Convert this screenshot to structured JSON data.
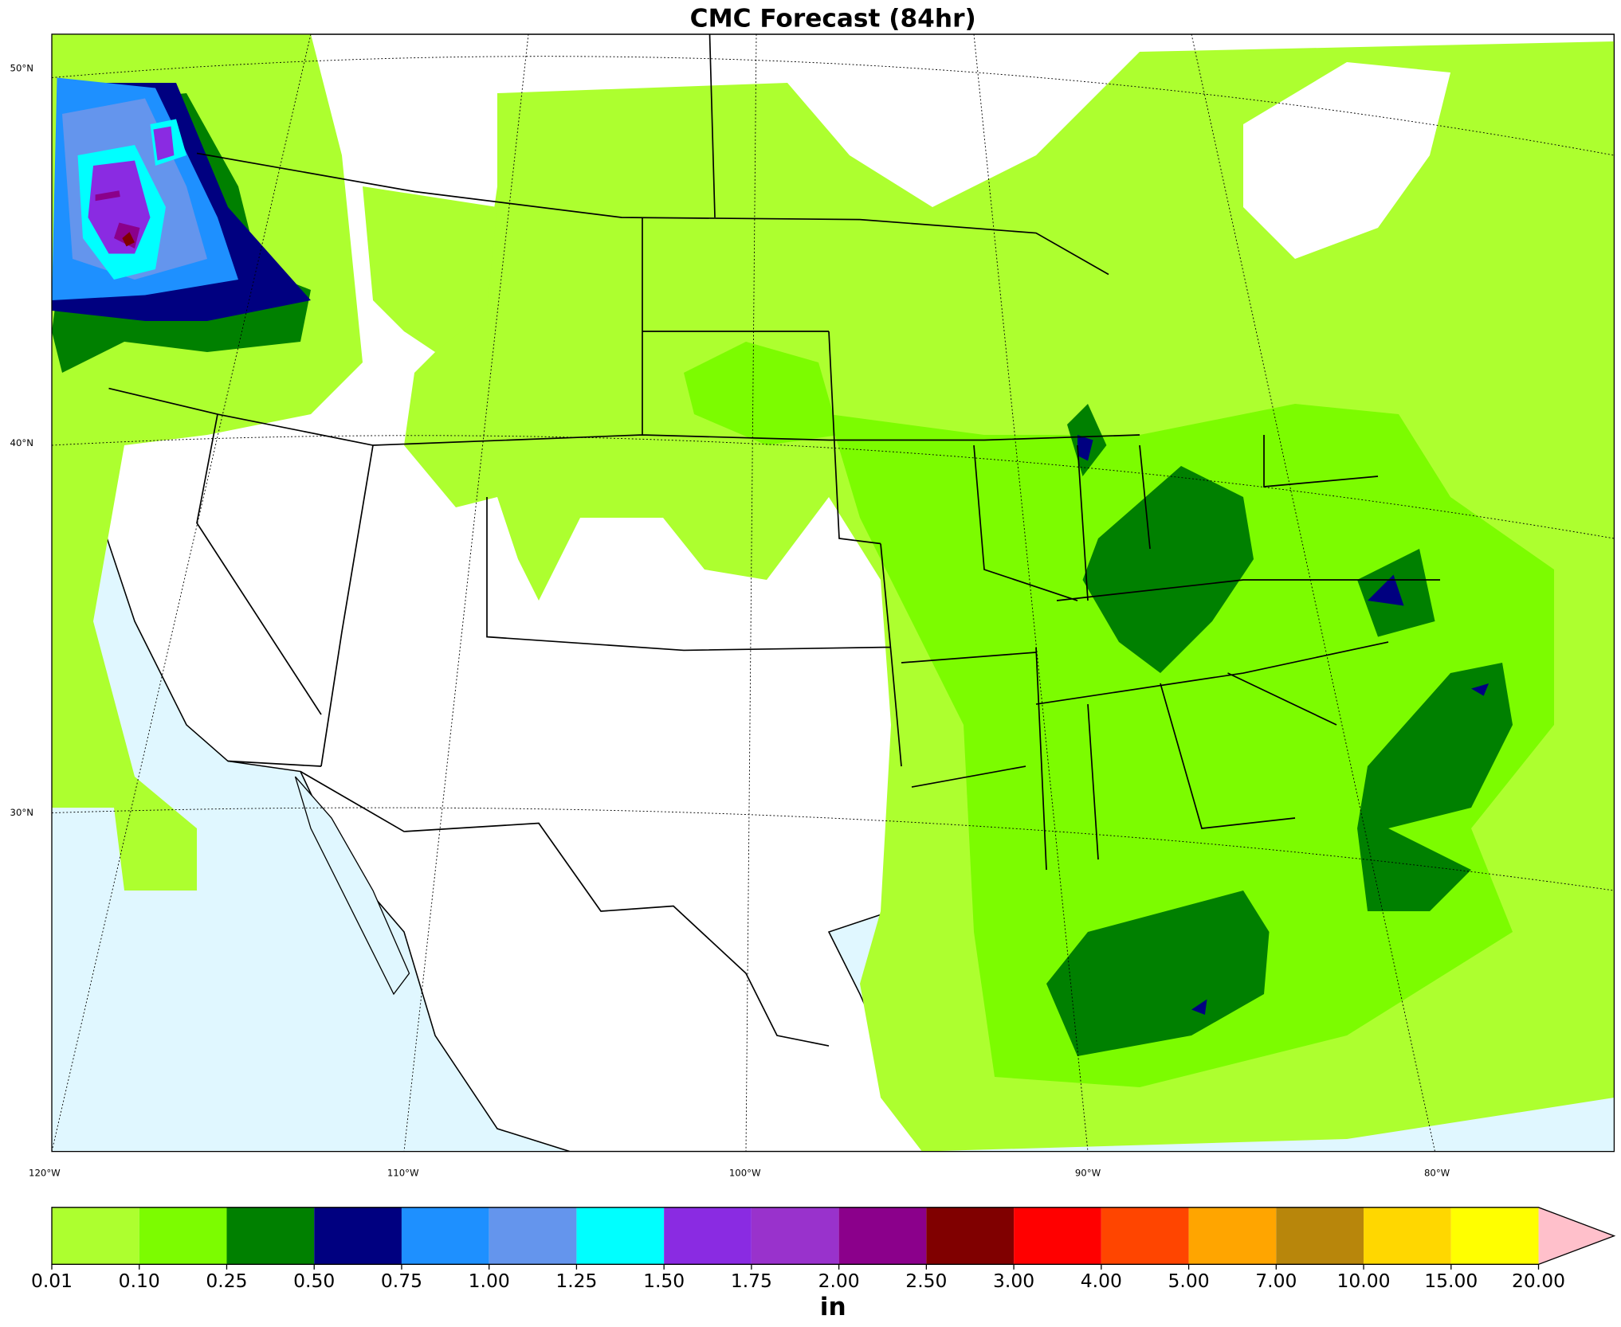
{
  "title": "CMC Forecast (84hr)",
  "map": {
    "lat_labels": [
      "50°N",
      "40°N",
      "30°N"
    ],
    "lon_labels": [
      "120°W",
      "110°W",
      "100°W",
      "90°W",
      "80°W"
    ]
  },
  "colorbar": {
    "label": "in",
    "ticks": [
      0.01,
      {
        "value": 0.1,
        "label": "0.10"
      },
      {
        "value": 0.25,
        "label": "0.25"
      },
      {
        "value": 0.5,
        "label": "0.50"
      },
      {
        "value": 0.75,
        "label": "0.75"
      },
      {
        "value": 1,
        "label": "1.00"
      },
      {
        "value": 1.25,
        "label": "1.25"
      },
      {
        "value": 1.5,
        "label": "1.50"
      },
      {
        "value": 1.75,
        "label": "1.75"
      },
      {
        "value": 2,
        "label": "2.00"
      },
      {
        "value": 2.5,
        "label": "2.50"
      },
      {
        "value": 3,
        "label": "3.00"
      },
      {
        "value": 4,
        "label": "4.00"
      },
      {
        "value": 5,
        "label": "5.00"
      },
      {
        "value": 7,
        "label": "7.00"
      },
      {
        "value": 10,
        "label": "10.00"
      },
      {
        "value": 15,
        "label": "15.00"
      },
      {
        "value": 20,
        "label": "20.00"
      }
    ],
    "colors": [
      "#adff2f",
      "#7cfc00",
      "#008000",
      "#000080",
      "#1e90ff",
      "#6495ed",
      "#00ffff",
      "#8a2be2",
      "#9932cc",
      "#8b008b",
      "#800000",
      "#ff0000",
      "#ff4500",
      "#ffa500",
      "#b8860b",
      "#ffd700",
      "#ffff00"
    ],
    "extend_color": "#ffc0cb"
  }
}
